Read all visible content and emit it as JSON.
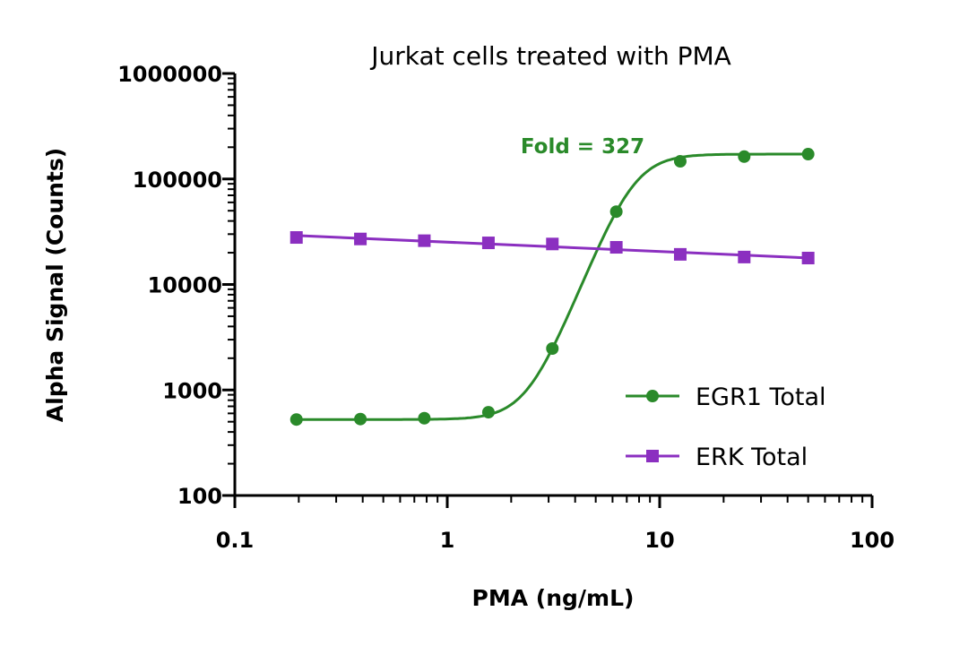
{
  "chart_data": {
    "type": "scatter",
    "title": "Jurkat cells treated with PMA",
    "xlabel": "PMA (ng/mL)",
    "ylabel": "Alpha Signal (Counts)",
    "xscale": "log",
    "yscale": "log",
    "xlim": [
      0.1,
      100
    ],
    "ylim": [
      100,
      1000000
    ],
    "xticks": [
      "0.1",
      "1",
      "10",
      "100"
    ],
    "yticks": [
      "100",
      "1000",
      "10000",
      "100000",
      "1000000"
    ],
    "grid": false,
    "legend_position": "bottom-right",
    "annotation": "Fold = 327",
    "series": [
      {
        "name": "EGR1 Total",
        "color": "#2a8a2a",
        "marker": "circle",
        "fit": "sigmoidal",
        "x": [
          0.195,
          0.39,
          0.78,
          1.5625,
          3.125,
          6.25,
          12.5,
          25,
          50
        ],
        "y": [
          525,
          530,
          540,
          615,
          2470,
          49000,
          147000,
          163000,
          172000
        ]
      },
      {
        "name": "ERK Total",
        "color": "#8b2fc0",
        "marker": "square",
        "fit": "line",
        "x": [
          0.195,
          0.39,
          0.78,
          1.5625,
          3.125,
          6.25,
          12.5,
          25,
          50
        ],
        "y": [
          27900,
          27000,
          26000,
          24800,
          24200,
          22500,
          19300,
          18200,
          17800
        ]
      }
    ]
  }
}
